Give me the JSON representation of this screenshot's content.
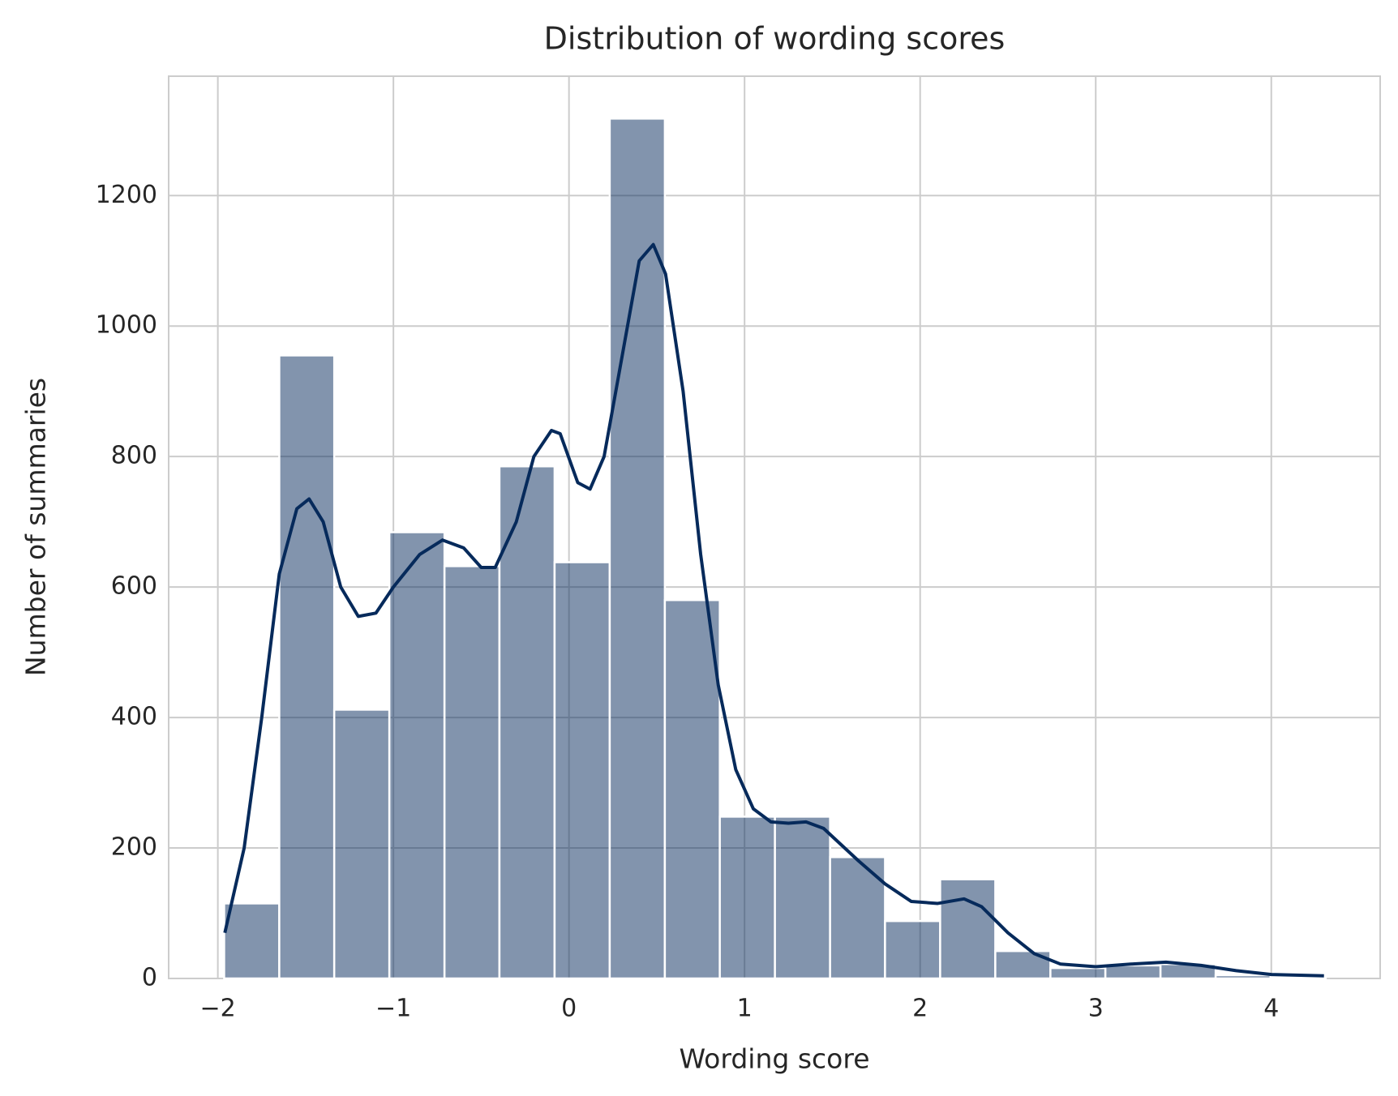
{
  "chart_data": {
    "type": "histogram",
    "title": "Distribution of wording scores",
    "xlabel": "Wording score",
    "ylabel": "Number of summaries",
    "bins": [
      -1.964,
      -1.65,
      -1.337,
      -1.023,
      -0.709,
      -0.396,
      -0.082,
      0.232,
      0.546,
      0.859,
      1.173,
      1.487,
      1.8,
      2.114,
      2.428,
      2.742,
      3.055,
      3.369,
      3.683,
      3.996,
      4.31
    ],
    "values": [
      115,
      955,
      412,
      684,
      632,
      785,
      638,
      1318,
      580,
      248,
      248,
      186,
      88,
      152,
      42,
      16,
      20,
      22,
      5,
      2
    ],
    "color": "#062a5b",
    "kde": {
      "color": "#062a5b",
      "x": [
        -1.96,
        -1.85,
        -1.75,
        -1.65,
        -1.55,
        -1.48,
        -1.4,
        -1.3,
        -1.2,
        -1.1,
        -1.0,
        -0.85,
        -0.72,
        -0.6,
        -0.5,
        -0.42,
        -0.3,
        -0.2,
        -0.1,
        -0.05,
        0.05,
        0.12,
        0.2,
        0.3,
        0.4,
        0.48,
        0.55,
        0.65,
        0.75,
        0.85,
        0.95,
        1.05,
        1.15,
        1.25,
        1.35,
        1.45,
        1.55,
        1.65,
        1.8,
        1.95,
        2.1,
        2.25,
        2.35,
        2.5,
        2.65,
        2.8,
        3.0,
        3.2,
        3.4,
        3.6,
        3.8,
        4.0,
        4.3
      ],
      "values": [
        70,
        200,
        400,
        620,
        720,
        735,
        700,
        600,
        555,
        560,
        600,
        650,
        672,
        660,
        630,
        630,
        700,
        800,
        840,
        835,
        760,
        750,
        800,
        950,
        1100,
        1125,
        1080,
        900,
        650,
        450,
        320,
        260,
        240,
        238,
        240,
        230,
        205,
        180,
        145,
        118,
        115,
        122,
        110,
        70,
        38,
        22,
        18,
        22,
        25,
        20,
        12,
        6,
        4
      ]
    },
    "xlim": [
      -2.28,
      4.62
    ],
    "ylim": [
      0,
      1383
    ],
    "xticks": [
      {
        "value": -2,
        "label": "−2"
      },
      {
        "value": -1,
        "label": "−1"
      },
      0,
      1,
      2,
      3,
      4
    ],
    "yticks": [
      0,
      200,
      400,
      600,
      800,
      1000,
      1200
    ],
    "grid": true
  }
}
